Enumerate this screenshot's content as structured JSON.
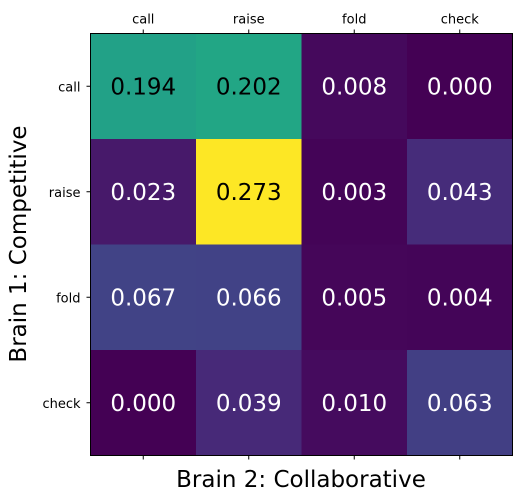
{
  "chart_data": {
    "type": "heatmap",
    "title": "",
    "xlabel": "Brain 2: Collaborative",
    "ylabel": "Brain 1: Competitive",
    "x_categories": [
      "call",
      "raise",
      "fold",
      "check"
    ],
    "y_categories": [
      "call",
      "raise",
      "fold",
      "check"
    ],
    "x_tick_position": "top",
    "values": [
      [
        0.194,
        0.202,
        0.008,
        0.0
      ],
      [
        0.023,
        0.273,
        0.003,
        0.043
      ],
      [
        0.067,
        0.066,
        0.005,
        0.004
      ],
      [
        0.0,
        0.039,
        0.01,
        0.063
      ]
    ],
    "value_labels": [
      [
        "0.194",
        "0.202",
        "0.008",
        "0.000"
      ],
      [
        "0.023",
        "0.273",
        "0.003",
        "0.043"
      ],
      [
        "0.067",
        "0.066",
        "0.005",
        "0.004"
      ],
      [
        "0.000",
        "0.039",
        "0.010",
        "0.063"
      ]
    ],
    "colormap": "viridis",
    "color_range": [
      0.0,
      0.273
    ],
    "colorbar": false,
    "grid": false
  },
  "colors": {
    "text_dark": "#000000",
    "text_light": "#ffffff"
  }
}
